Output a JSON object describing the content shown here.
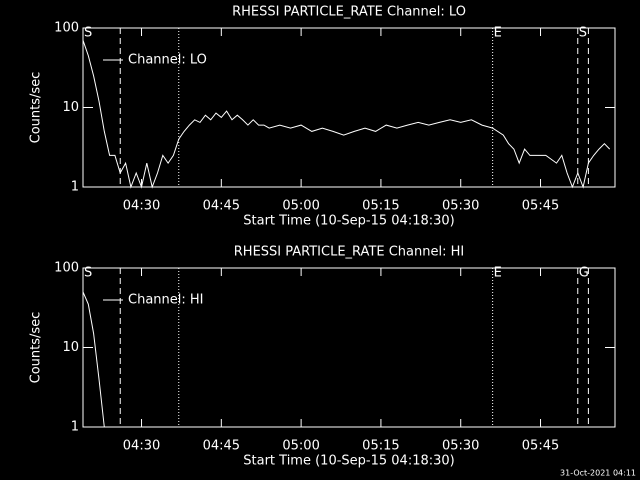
{
  "chart_data": [
    {
      "type": "line",
      "title": "RHESSI PARTICLE_RATE Channel: LO",
      "y_label": "Counts/sec",
      "x_label": "Start Time (10-Sep-15 04:18:30)",
      "log_y": true,
      "ylim": [
        1,
        100
      ],
      "yticks": [
        1,
        10,
        100
      ],
      "xlim": [
        "04:19",
        "05:59"
      ],
      "xticks": [
        "04:30",
        "04:45",
        "05:00",
        "05:15",
        "05:30",
        "05:45"
      ],
      "x": [
        "04:19",
        "04:20",
        "04:21",
        "04:22",
        "04:23",
        "04:24",
        "04:25",
        "04:26",
        "04:27",
        "04:28",
        "04:29",
        "04:30",
        "04:31",
        "04:32",
        "04:33",
        "04:34",
        "04:35",
        "04:36",
        "04:37",
        "04:38",
        "04:39",
        "04:40",
        "04:41",
        "04:42",
        "04:43",
        "04:44",
        "04:45",
        "04:46",
        "04:47",
        "04:48",
        "04:49",
        "04:50",
        "04:51",
        "04:52",
        "04:53",
        "04:54",
        "04:56",
        "04:58",
        "05:00",
        "05:02",
        "05:04",
        "05:06",
        "05:08",
        "05:10",
        "05:12",
        "05:14",
        "05:16",
        "05:18",
        "05:20",
        "05:22",
        "05:24",
        "05:26",
        "05:28",
        "05:30",
        "05:32",
        "05:34",
        "05:36",
        "05:38",
        "05:39",
        "05:40",
        "05:41",
        "05:42",
        "05:43",
        "05:44",
        "05:46",
        "05:48",
        "05:49",
        "05:50",
        "05:51",
        "05:52",
        "05:53",
        "05:54",
        "05:55",
        "05:56",
        "05:57",
        "05:58"
      ],
      "series": [
        {
          "name": "Channel: LO",
          "color": "#ffffff",
          "values": [
            70,
            45,
            25,
            12,
            5,
            2.5,
            2.5,
            1.5,
            2,
            1,
            1.5,
            1,
            2,
            1,
            1.5,
            2.5,
            2,
            2.5,
            4,
            5,
            6,
            7,
            6.5,
            8,
            7,
            8.5,
            7.5,
            9,
            7,
            8,
            7,
            6,
            7,
            6,
            6,
            5.5,
            6,
            5.5,
            6,
            5,
            5.5,
            5,
            4.5,
            5,
            5.5,
            5,
            6,
            5.5,
            6,
            6.5,
            6,
            6.5,
            7,
            6.5,
            7,
            6,
            5.5,
            4.5,
            3.5,
            3,
            2,
            3,
            2.5,
            2.5,
            2.5,
            2,
            2.5,
            1.5,
            1,
            1.5,
            1,
            2,
            2.5,
            3,
            3.5,
            3
          ]
        }
      ],
      "vlines": [
        {
          "x": "04:26",
          "style": "dashed"
        },
        {
          "x": "04:37",
          "style": "dotted"
        },
        {
          "x": "05:36",
          "style": "dotted"
        },
        {
          "x": "05:52",
          "style": "dashed"
        },
        {
          "x": "05:54",
          "style": "dashed"
        }
      ],
      "annotations": [
        {
          "text": "S",
          "x": "04:19"
        },
        {
          "text": "E",
          "x": "05:36"
        },
        {
          "text": "S",
          "x": "05:52"
        }
      ]
    },
    {
      "type": "line",
      "title": "RHESSI PARTICLE_RATE Channel: HI",
      "y_label": "Counts/sec",
      "x_label": "Start Time (10-Sep-15 04:18:30)",
      "log_y": true,
      "ylim": [
        1,
        100
      ],
      "yticks": [
        1,
        10,
        100
      ],
      "xlim": [
        "04:19",
        "05:59"
      ],
      "xticks": [
        "04:30",
        "04:45",
        "05:00",
        "05:15",
        "05:30",
        "05:45"
      ],
      "x": [
        "04:19",
        "04:20",
        "04:21",
        "04:22",
        "04:23"
      ],
      "series": [
        {
          "name": "Channel: HI",
          "color": "#ffffff",
          "values": [
            50,
            35,
            15,
            4,
            1
          ]
        }
      ],
      "vlines": [
        {
          "x": "04:26",
          "style": "dashed"
        },
        {
          "x": "04:37",
          "style": "dotted"
        },
        {
          "x": "05:36",
          "style": "dotted"
        },
        {
          "x": "05:52",
          "style": "dashed"
        },
        {
          "x": "05:54",
          "style": "dashed"
        }
      ],
      "annotations": [
        {
          "text": "S",
          "x": "04:19"
        },
        {
          "text": "E",
          "x": "05:36"
        },
        {
          "text": "G",
          "x": "05:52"
        }
      ]
    }
  ],
  "footer": "31-Oct-2021 04:11"
}
